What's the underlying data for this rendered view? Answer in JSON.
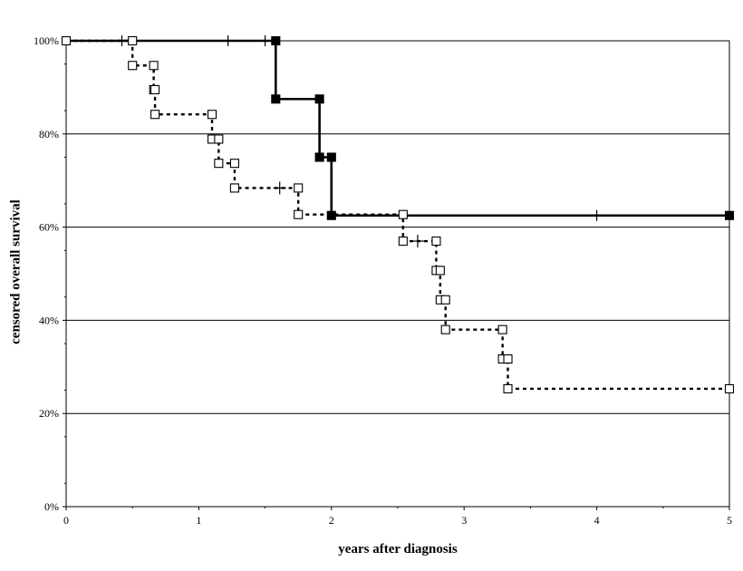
{
  "chart_data": {
    "type": "line",
    "title": "",
    "xlabel": "years after diagnosis",
    "ylabel": "censored overall survival",
    "xlim": [
      0,
      5
    ],
    "ylim": [
      0,
      100
    ],
    "x_ticks": [
      "0",
      "1",
      "2",
      "3",
      "4",
      "5"
    ],
    "y_ticks": [
      "0%",
      "20%",
      "40%",
      "60%",
      "80%",
      "100%"
    ],
    "y_tick_values": [
      0,
      20,
      40,
      60,
      80,
      100
    ],
    "grid": "horizontal",
    "legend": "none",
    "series": [
      {
        "style": "solid",
        "marker": "filled-square",
        "color": "#000000",
        "steps": [
          {
            "x": 0.0,
            "y": 100.0
          },
          {
            "x": 1.58,
            "y": 87.5
          },
          {
            "x": 1.91,
            "y": 75.0
          },
          {
            "x": 2.0,
            "y": 62.5
          },
          {
            "x": 5.0,
            "y": 62.5
          }
        ],
        "markers": [
          {
            "x": 1.58,
            "y": 100.0
          },
          {
            "x": 1.58,
            "y": 87.5
          },
          {
            "x": 1.91,
            "y": 87.5
          },
          {
            "x": 1.91,
            "y": 75.0
          },
          {
            "x": 2.0,
            "y": 75.0
          },
          {
            "x": 2.0,
            "y": 62.5
          },
          {
            "x": 5.0,
            "y": 62.5
          }
        ],
        "censored": [
          {
            "x": 0.42,
            "y": 100.0
          },
          {
            "x": 1.22,
            "y": 100.0
          },
          {
            "x": 1.5,
            "y": 100.0
          },
          {
            "x": 4.0,
            "y": 62.5
          }
        ]
      },
      {
        "style": "dotted",
        "marker": "open-square",
        "color": "#000000",
        "steps": [
          {
            "x": 0.0,
            "y": 100.0
          },
          {
            "x": 0.5,
            "y": 94.7
          },
          {
            "x": 0.66,
            "y": 89.5
          },
          {
            "x": 0.67,
            "y": 84.2
          },
          {
            "x": 1.1,
            "y": 78.9
          },
          {
            "x": 1.15,
            "y": 73.7
          },
          {
            "x": 1.27,
            "y": 68.4
          },
          {
            "x": 1.75,
            "y": 62.7
          },
          {
            "x": 2.54,
            "y": 57.0
          },
          {
            "x": 2.79,
            "y": 50.7
          },
          {
            "x": 2.82,
            "y": 44.4
          },
          {
            "x": 2.86,
            "y": 38.0
          },
          {
            "x": 3.29,
            "y": 31.7
          },
          {
            "x": 3.33,
            "y": 25.3
          },
          {
            "x": 5.0,
            "y": 25.3
          }
        ],
        "markers": [
          {
            "x": 0.0,
            "y": 100.0
          },
          {
            "x": 0.5,
            "y": 100.0
          },
          {
            "x": 0.5,
            "y": 94.7
          },
          {
            "x": 0.66,
            "y": 94.7
          },
          {
            "x": 0.66,
            "y": 89.5
          },
          {
            "x": 0.67,
            "y": 89.5
          },
          {
            "x": 0.67,
            "y": 84.2
          },
          {
            "x": 1.1,
            "y": 84.2
          },
          {
            "x": 1.1,
            "y": 78.9
          },
          {
            "x": 1.15,
            "y": 78.9
          },
          {
            "x": 1.15,
            "y": 73.7
          },
          {
            "x": 1.27,
            "y": 73.7
          },
          {
            "x": 1.27,
            "y": 68.4
          },
          {
            "x": 1.75,
            "y": 68.4
          },
          {
            "x": 1.75,
            "y": 62.7
          },
          {
            "x": 2.54,
            "y": 62.7
          },
          {
            "x": 2.54,
            "y": 57.0
          },
          {
            "x": 2.79,
            "y": 57.0
          },
          {
            "x": 2.79,
            "y": 50.7
          },
          {
            "x": 2.82,
            "y": 50.7
          },
          {
            "x": 2.82,
            "y": 44.4
          },
          {
            "x": 2.86,
            "y": 44.4
          },
          {
            "x": 2.86,
            "y": 38.0
          },
          {
            "x": 3.29,
            "y": 38.0
          },
          {
            "x": 3.29,
            "y": 31.7
          },
          {
            "x": 3.33,
            "y": 31.7
          },
          {
            "x": 3.33,
            "y": 25.3
          },
          {
            "x": 5.0,
            "y": 25.3
          }
        ],
        "censored": [
          {
            "x": 1.61,
            "y": 68.4
          },
          {
            "x": 2.65,
            "y": 57.0
          }
        ]
      }
    ]
  }
}
